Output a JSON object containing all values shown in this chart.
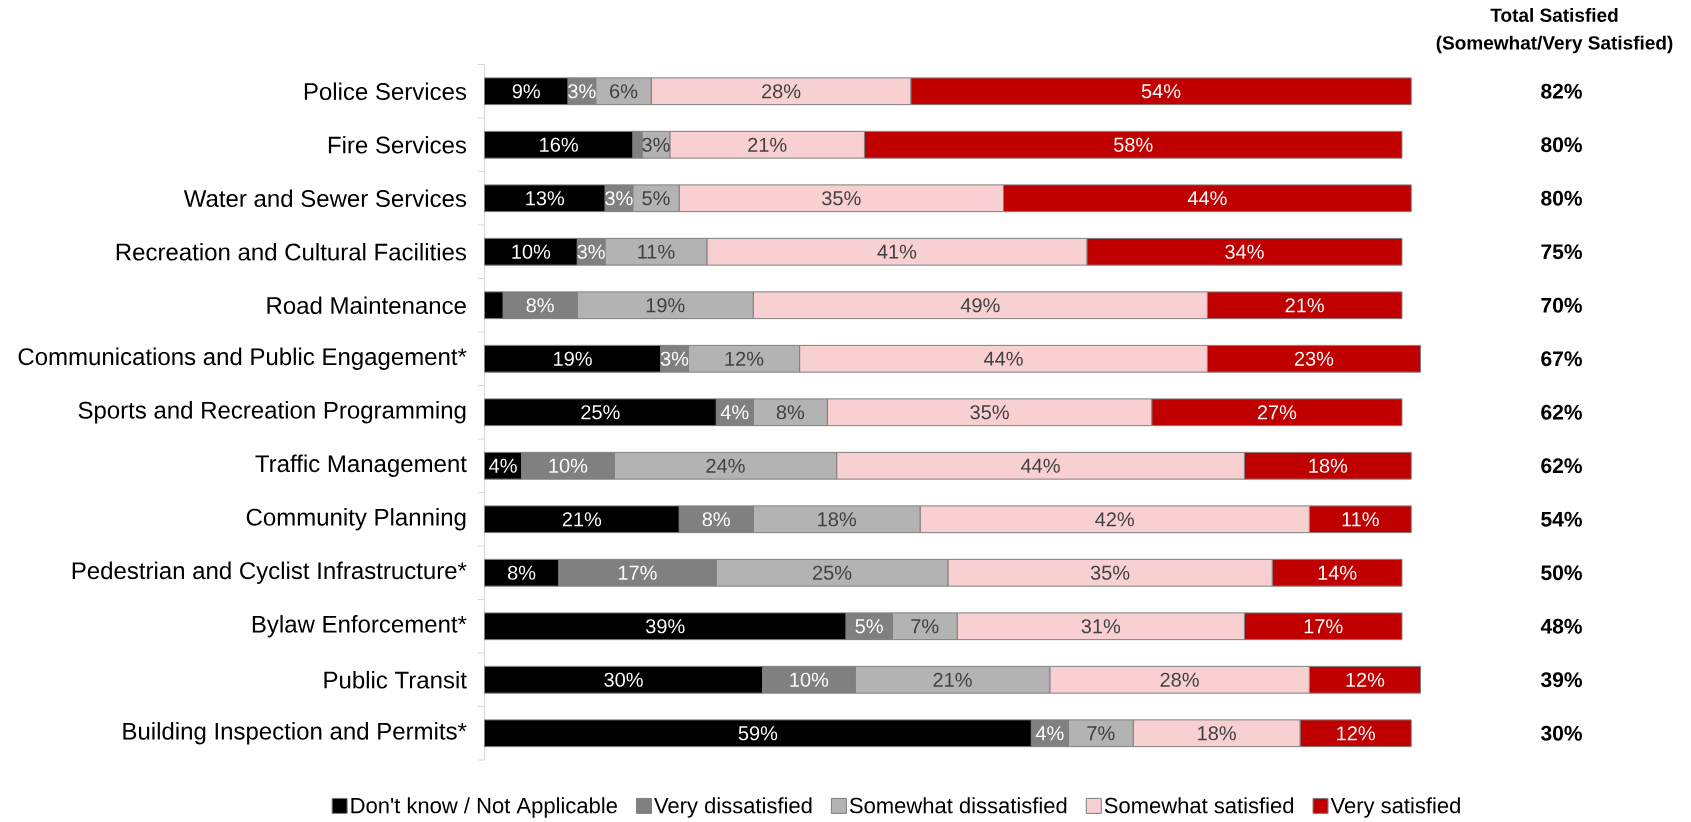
{
  "chart_data": {
    "type": "bar",
    "orientation": "horizontal",
    "stacked": true,
    "categories": [
      "Police Services",
      "Fire Services",
      "Water and Sewer Services",
      "Recreation and Cultural Facilities",
      "Road Maintenance",
      "Communications and Public Engagement*",
      "Sports and Recreation Programming",
      "Traffic Management",
      "Community Planning",
      "Pedestrian and Cyclist Infrastructure*",
      "Bylaw Enforcement*",
      "Public Transit",
      "Building Inspection and Permits*"
    ],
    "series": [
      {
        "name": "Don't know / Not Applicable",
        "color": "#000000",
        "values": [
          9,
          16,
          13,
          10,
          2,
          19,
          25,
          4,
          21,
          8,
          39,
          30,
          59
        ],
        "value_labels": [
          "9%",
          "16%",
          "13%",
          "10%",
          null,
          "19%",
          "25%",
          "4%",
          "21%",
          "8%",
          "39%",
          "30%",
          "59%"
        ]
      },
      {
        "name": "Very dissatisfied",
        "color": "#808080",
        "values": [
          3,
          1,
          3,
          3,
          8,
          3,
          4,
          10,
          8,
          17,
          5,
          10,
          4
        ],
        "value_labels": [
          "3%",
          null,
          "3%",
          "3%",
          "8%",
          "3%",
          "4%",
          "10%",
          "8%",
          "17%",
          "5%",
          "10%",
          "4%"
        ]
      },
      {
        "name": "Somewhat dissatisfied",
        "color": "#b3b3b3",
        "values": [
          6,
          3,
          5,
          11,
          19,
          12,
          8,
          24,
          18,
          25,
          7,
          21,
          7
        ],
        "value_labels": [
          "6%",
          "3%",
          "5%",
          "11%",
          "19%",
          "12%",
          "8%",
          "24%",
          "18%",
          "25%",
          "7%",
          "21%",
          "7%"
        ]
      },
      {
        "name": "Somewhat satisfied",
        "color": "#f9d0d1",
        "values": [
          28,
          21,
          35,
          41,
          49,
          44,
          35,
          44,
          42,
          35,
          31,
          28,
          18
        ],
        "value_labels": [
          "28%",
          "21%",
          "35%",
          "41%",
          "49%",
          "44%",
          "35%",
          "44%",
          "42%",
          "35%",
          "31%",
          "28%",
          "18%"
        ]
      },
      {
        "name": "Very satisfied",
        "color": "#c00000",
        "values": [
          54,
          58,
          44,
          34,
          21,
          23,
          27,
          18,
          11,
          14,
          17,
          12,
          12
        ],
        "value_labels": [
          "54%",
          "58%",
          "44%",
          "34%",
          "21%",
          "23%",
          "27%",
          "18%",
          "11%",
          "14%",
          "17%",
          "12%",
          "12%"
        ]
      }
    ],
    "annotations": [
      "Total Satisfied",
      "(Somewhat/Very Satisfied)",
      "82%",
      "80%",
      "80%",
      "75%",
      "70%",
      "67%",
      "62%",
      "62%",
      "54%",
      "50%",
      "48%",
      "39%",
      "30%"
    ],
    "legend": "bottom"
  }
}
